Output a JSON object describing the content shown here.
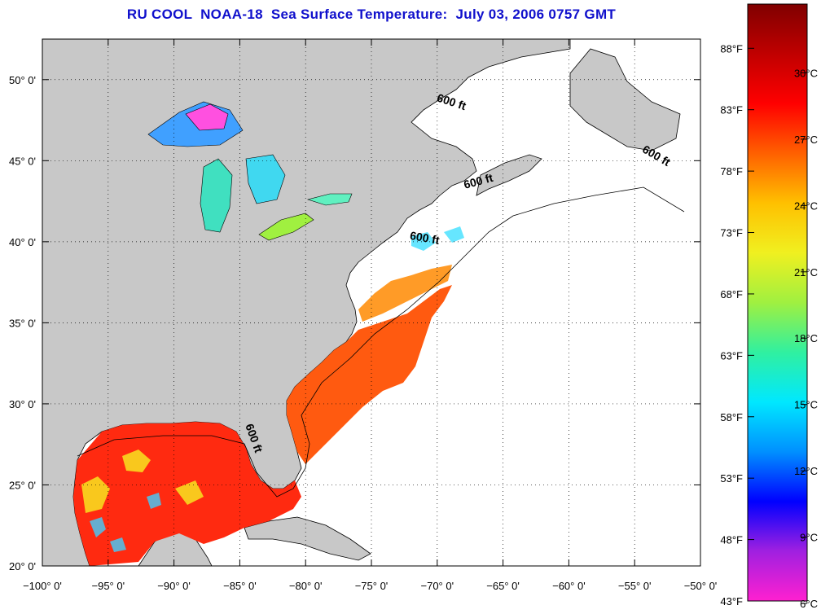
{
  "title": "RU COOL  NOAA-18  Sea Surface Temperature:  July 03, 2006 0757 GMT",
  "map": {
    "lon_range": [
      -100,
      -50
    ],
    "lat_range": [
      20,
      52.5
    ],
    "x_ticks": [
      {
        "lon": -100,
        "label": "−100° 0'"
      },
      {
        "lon": -95,
        "label": "−95° 0'"
      },
      {
        "lon": -90,
        "label": "−90° 0'"
      },
      {
        "lon": -85,
        "label": "−85° 0'"
      },
      {
        "lon": -80,
        "label": "−80° 0'"
      },
      {
        "lon": -75,
        "label": "−75° 0'"
      },
      {
        "lon": -70,
        "label": "−70° 0'"
      },
      {
        "lon": -65,
        "label": "−65° 0'"
      },
      {
        "lon": -60,
        "label": "−60° 0'"
      },
      {
        "lon": -55,
        "label": "−55° 0'"
      },
      {
        "lon": -50,
        "label": "−50° 0'"
      }
    ],
    "y_ticks": [
      {
        "lat": 20,
        "label": "20° 0'"
      },
      {
        "lat": 25,
        "label": "25° 0'"
      },
      {
        "lat": 30,
        "label": "30° 0'"
      },
      {
        "lat": 35,
        "label": "35° 0'"
      },
      {
        "lat": 40,
        "label": "40° 0'"
      },
      {
        "lat": 45,
        "label": "45° 0'"
      },
      {
        "lat": 50,
        "label": "50° 0'"
      }
    ],
    "grid": "dotted",
    "land_color": "#c8c8c8",
    "ocean_color": "#ffffff",
    "contour_labels": [
      {
        "text": "600 ft",
        "lon": -69.0,
        "lat": 48.4,
        "rotate": 18
      },
      {
        "text": "600 ft",
        "lon": -53.5,
        "lat": 45.1,
        "rotate": 30
      },
      {
        "text": "600 ft",
        "lon": -66.8,
        "lat": 43.5,
        "rotate": -15
      },
      {
        "text": "600 ft",
        "lon": -71.0,
        "lat": 40.0,
        "rotate": 10
      },
      {
        "text": "600 ft",
        "lon": -84.2,
        "lat": 27.8,
        "rotate": 70
      }
    ]
  },
  "colorbar": {
    "f_labels": [
      {
        "value": 43,
        "label": "43°F"
      },
      {
        "value": 48,
        "label": "48°F"
      },
      {
        "value": 53,
        "label": "53°F"
      },
      {
        "value": 58,
        "label": "58°F"
      },
      {
        "value": 63,
        "label": "63°F"
      },
      {
        "value": 68,
        "label": "68°F"
      },
      {
        "value": 73,
        "label": "73°F"
      },
      {
        "value": 78,
        "label": "78°F"
      },
      {
        "value": 83,
        "label": "83°F"
      },
      {
        "value": 88,
        "label": "88°F"
      }
    ],
    "c_labels": [
      {
        "value": 6,
        "label": "6°C"
      },
      {
        "value": 9,
        "label": "9°C"
      },
      {
        "value": 12,
        "label": "12°C"
      },
      {
        "value": 15,
        "label": "15°C"
      },
      {
        "value": 18,
        "label": "18°C"
      },
      {
        "value": 21,
        "label": "21°C"
      },
      {
        "value": 24,
        "label": "24°C"
      },
      {
        "value": 27,
        "label": "27°C"
      },
      {
        "value": 30,
        "label": "30°C"
      }
    ],
    "colors": [
      "#ff20d0",
      "#a020e0",
      "#0000ff",
      "#0090ff",
      "#00e8ff",
      "#30f0a0",
      "#a0f040",
      "#f0f020",
      "#ffc000",
      "#ff6000",
      "#ff0000",
      "#c00000",
      "#800000"
    ]
  }
}
